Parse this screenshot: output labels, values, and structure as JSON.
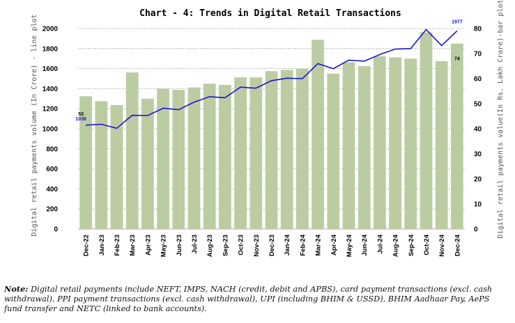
{
  "chart_data": {
    "type": "bar+line",
    "title": "Chart - 4: Trends in Digital Retail Transactions",
    "ylabel_left": "Digital retail payments volume (In Crore) - line plot",
    "ylabel_right": "Digital retail payments value(In Rs. Lakh Crore)-bar plot",
    "categories": [
      "Dec-22",
      "Jan-23",
      "Feb-23",
      "Mar-23",
      "Apr-23",
      "May-23",
      "Jun-23",
      "Jul-23",
      "Aug-23",
      "Sep-23",
      "Oct-23",
      "Nov-23",
      "Dec-23",
      "Jan-24",
      "Feb-24",
      "Mar-24",
      "Apr-24",
      "May-24",
      "Jun-24",
      "Jul-24",
      "Aug-24",
      "Sep-24",
      "Oct-24",
      "Nov-24",
      "Dec-24"
    ],
    "left_axis": {
      "min": 0,
      "max": 2000,
      "step": 200,
      "ticks": [
        "0",
        "200",
        "400",
        "600",
        "800",
        "1000",
        "1200",
        "1400",
        "1600",
        "1800",
        "2000"
      ]
    },
    "right_axis": {
      "min": 0,
      "max": 80,
      "step": 10,
      "ticks": [
        "0",
        "10",
        "20",
        "30",
        "40",
        "50",
        "60",
        "70",
        "80"
      ]
    },
    "line_series": {
      "axis": "left",
      "color": "#1515cc",
      "values": [
        1036,
        1045,
        1005,
        1135,
        1132,
        1205,
        1190,
        1265,
        1320,
        1310,
        1415,
        1405,
        1480,
        1505,
        1500,
        1650,
        1600,
        1685,
        1675,
        1740,
        1795,
        1800,
        1990,
        1830,
        1977
      ]
    },
    "bar_series": {
      "axis": "right",
      "color": "#bccca2",
      "values": [
        53,
        51,
        49.5,
        62.5,
        52,
        56,
        55.5,
        56.5,
        58,
        57.5,
        60.5,
        60.5,
        63,
        63.5,
        64,
        75.5,
        62,
        66.5,
        65,
        69,
        68.5,
        68,
        78.5,
        67,
        74
      ]
    },
    "data_labels": [
      {
        "series": "bar",
        "index": 0,
        "text": "53"
      },
      {
        "series": "line",
        "index": 0,
        "text": "1036"
      },
      {
        "series": "bar",
        "index": 24,
        "text": "74"
      },
      {
        "series": "line",
        "index": 24,
        "text": "1977"
      }
    ],
    "grid": "horizontal dotted",
    "legend": "none"
  },
  "note": {
    "label": "Note:",
    "text": "Digital retail payments include NEFT, IMPS, NACH (credit, debit and APBS), card payment transactions (excl. cash withdrawal), PPI payment transactions (excl. cash withdrawal), UPI (including BHIM & USSD), BHIM Aadhaar Pay, AePS fund transfer and NETC (linked to bank accounts)."
  }
}
